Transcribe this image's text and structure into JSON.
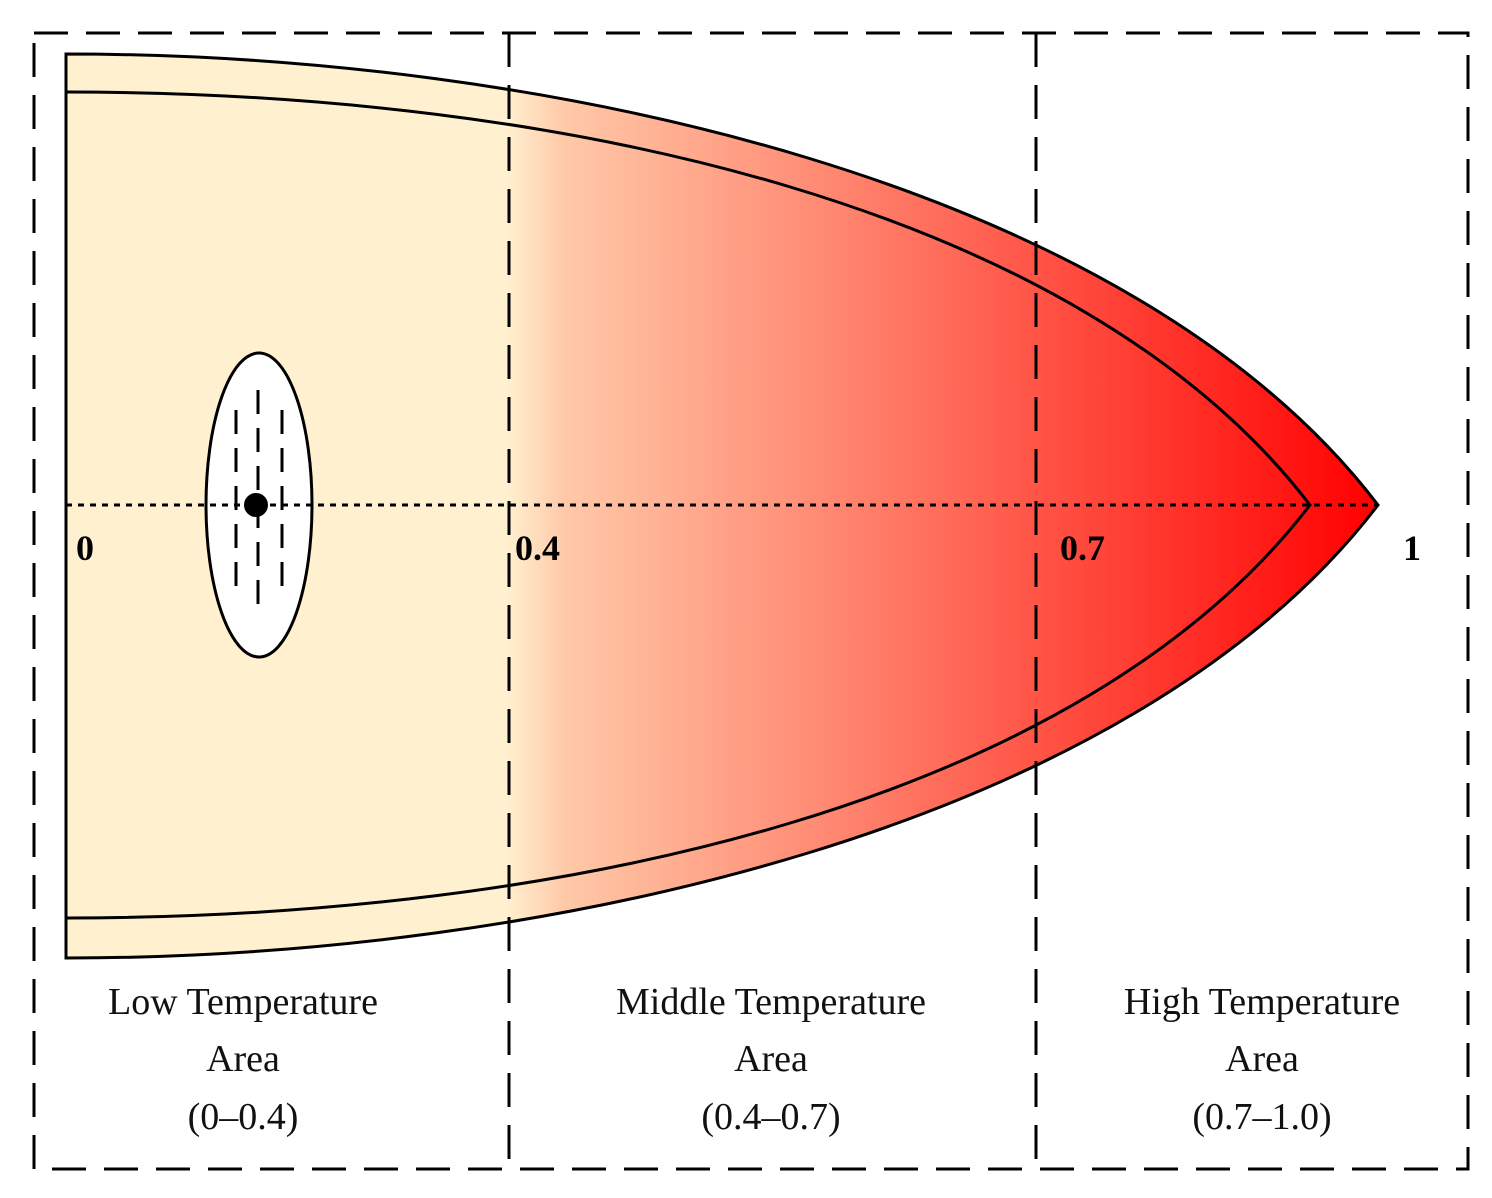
{
  "scale_labels": [
    "0",
    "0.4",
    "0.7",
    "1"
  ],
  "zones": [
    {
      "line1": "Low Temperature",
      "line2": "Area",
      "range": "(0–0.4)"
    },
    {
      "line1": "Middle Temperature",
      "line2": "Area",
      "range": "(0.4–0.7)"
    },
    {
      "line1": "High Temperature",
      "line2": "Area",
      "range": "(0.7–1.0)"
    }
  ],
  "colors": {
    "cool": "#fff1d0",
    "mid": "#ffc9a8",
    "hot": "#ff0000",
    "outline": "#000000",
    "ellipse_fill": "#ffffff"
  }
}
